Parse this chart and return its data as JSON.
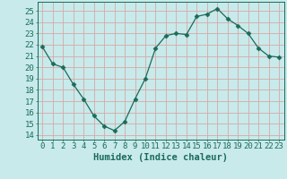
{
  "x": [
    0,
    1,
    2,
    3,
    4,
    5,
    6,
    7,
    8,
    9,
    10,
    11,
    12,
    13,
    14,
    15,
    16,
    17,
    18,
    19,
    20,
    21,
    22,
    23
  ],
  "y": [
    21.8,
    20.3,
    20.0,
    18.5,
    17.2,
    15.7,
    14.8,
    14.4,
    15.2,
    17.2,
    19.0,
    21.7,
    22.8,
    23.0,
    22.9,
    24.5,
    24.7,
    25.2,
    24.3,
    23.7,
    23.0,
    21.7,
    21.0,
    20.9
  ],
  "line_color": "#1a6b5a",
  "marker": "D",
  "marker_size": 2.5,
  "bg_color": "#c8eaea",
  "grid_color": "#d8a8a8",
  "xlabel": "Humidex (Indice chaleur)",
  "ylabel_ticks": [
    14,
    15,
    16,
    17,
    18,
    19,
    20,
    21,
    22,
    23,
    24,
    25
  ],
  "ylim": [
    13.6,
    25.8
  ],
  "xlim": [
    -0.5,
    23.5
  ],
  "xtick_labels": [
    "0",
    "1",
    "2",
    "3",
    "4",
    "5",
    "6",
    "7",
    "8",
    "9",
    "10",
    "11",
    "12",
    "13",
    "14",
    "15",
    "16",
    "17",
    "18",
    "19",
    "20",
    "21",
    "22",
    "23"
  ],
  "xlabel_fontsize": 7.5,
  "tick_fontsize": 6.5,
  "title": ""
}
